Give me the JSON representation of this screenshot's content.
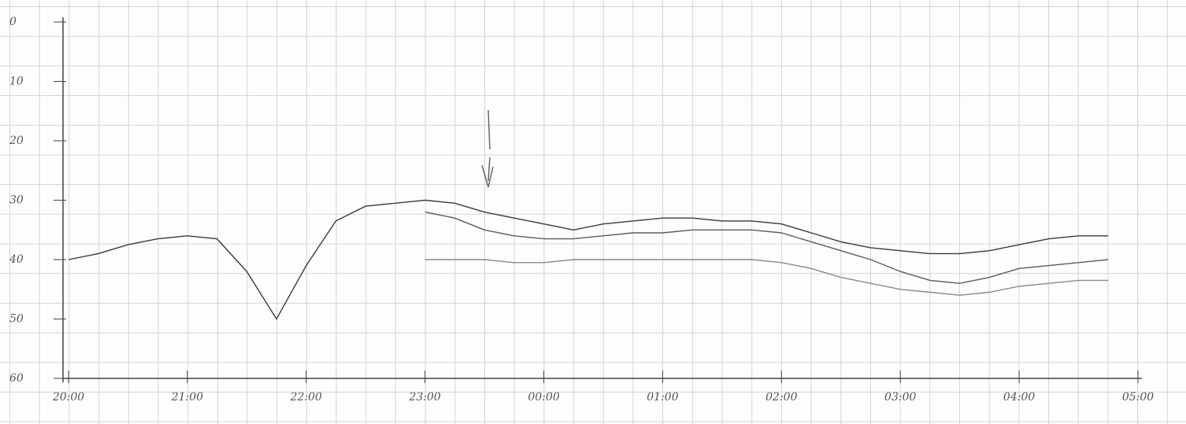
{
  "chart_data": {
    "type": "line",
    "x": [
      "20:00",
      "20:15",
      "20:30",
      "20:45",
      "21:00",
      "21:15",
      "21:30",
      "21:45",
      "22:00",
      "22:15",
      "22:30",
      "22:45",
      "23:00",
      "23:15",
      "23:30",
      "23:45",
      "00:00",
      "00:15",
      "00:30",
      "00:45",
      "01:00",
      "01:15",
      "01:30",
      "01:45",
      "02:00",
      "02:15",
      "02:30",
      "02:45",
      "03:00",
      "03:15",
      "03:30",
      "03:45",
      "04:00",
      "04:15",
      "04:30",
      "04:45"
    ],
    "series": [
      {
        "color": "#3a3a3a",
        "values": [
          40,
          39,
          37.5,
          36.5,
          36,
          36.5,
          42,
          50,
          41,
          33.5,
          31,
          30.5,
          30,
          30.5,
          32,
          33,
          34,
          35,
          34,
          33.5,
          33,
          33,
          33.5,
          33.5,
          34,
          35.5,
          37,
          38,
          38.5,
          39,
          39,
          38.5,
          37.5,
          36.5,
          36,
          36
        ]
      },
      {
        "color": "#8a8a8a",
        "values": [
          null,
          null,
          null,
          null,
          null,
          null,
          null,
          null,
          null,
          null,
          null,
          null,
          40,
          40,
          40,
          40.5,
          40.5,
          40,
          40,
          40,
          40,
          40,
          40,
          40,
          40.5,
          41.5,
          43,
          44,
          45,
          45.5,
          46,
          45.5,
          44.5,
          44,
          43.5,
          43.5
        ]
      },
      {
        "color": "#5c5c5c",
        "values": [
          null,
          null,
          null,
          null,
          null,
          null,
          null,
          null,
          null,
          null,
          null,
          null,
          32,
          33,
          35,
          36,
          36.5,
          36.5,
          36,
          35.5,
          35.5,
          35,
          35,
          35,
          35.5,
          37,
          38.5,
          40,
          42,
          43.5,
          44,
          43,
          41.5,
          41,
          40.5,
          40
        ]
      }
    ],
    "xlim": [
      "20:00",
      "05:00"
    ],
    "xticks": [
      "20:00",
      "21:00",
      "22:00",
      "23:00",
      "00:00",
      "01:00",
      "02:00",
      "03:00",
      "04:00",
      "05:00"
    ],
    "ylim": [
      0,
      60
    ],
    "y_inverted": true,
    "yticks": [
      0,
      10,
      20,
      30,
      40,
      50,
      60
    ]
  }
}
